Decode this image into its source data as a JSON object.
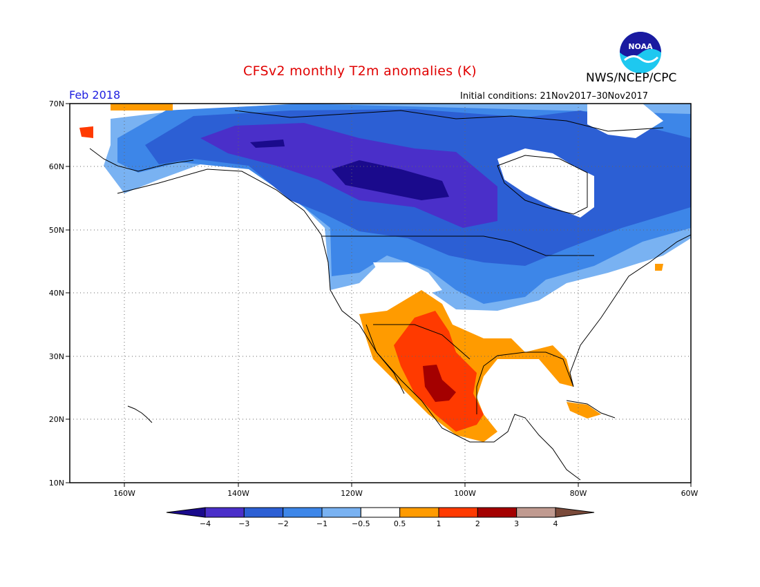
{
  "title": "CFSv2 monthly T2m anomalies (K)",
  "month": "Feb 2018",
  "initial_conditions": "Initial conditions: 21Nov2017–30Nov2017",
  "agency": "NWS/NCEP/CPC",
  "logo_text": "NOAA",
  "lat_labels": [
    "70N",
    "60N",
    "50N",
    "40N",
    "30N",
    "20N",
    "10N"
  ],
  "lon_labels": [
    "160W",
    "140W",
    "120W",
    "100W",
    "80W",
    "60W"
  ],
  "colorbar": {
    "tick_labels": [
      "−4",
      "−3",
      "−2",
      "−1",
      "−0.5",
      "0.5",
      "1",
      "2",
      "3",
      "4"
    ],
    "colors": [
      "#1a0a8c",
      "#4a2fc9",
      "#2c5fd4",
      "#3d86e8",
      "#79b2f2",
      "#ffffff",
      "#ff9b00",
      "#ff3a00",
      "#a40000",
      "#c09a90",
      "#7a4a3a"
    ]
  }
}
